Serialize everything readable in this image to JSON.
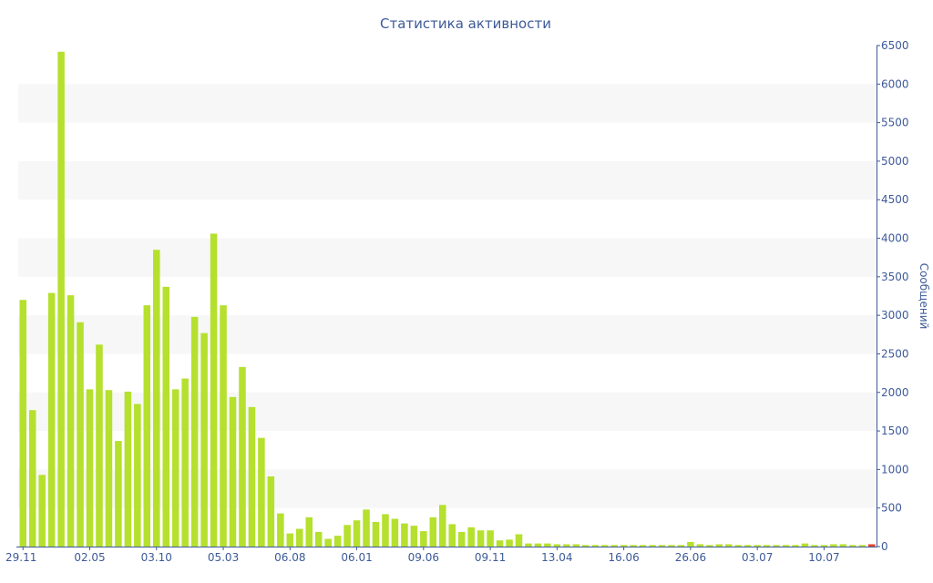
{
  "chart_data": {
    "type": "bar",
    "title": "Статистика активности",
    "ylabel": "Сообщений",
    "xlabel": "",
    "ylim": [
      0,
      6500
    ],
    "yticks": [
      0,
      500,
      1000,
      1500,
      2000,
      2500,
      3000,
      3500,
      4000,
      4500,
      5000,
      5500,
      6000,
      6500
    ],
    "y_axis_side": "right",
    "grid": "alternating horizontal bands",
    "bar_color": "#b5e02e",
    "last_bar_color": "#e8442e",
    "band_color": "#f7f7f7",
    "text_color": "#3d5a99",
    "x_tick_labels": [
      {
        "index": 0,
        "label": "29.11"
      },
      {
        "index": 7,
        "label": "02.05"
      },
      {
        "index": 14,
        "label": "03.10"
      },
      {
        "index": 21,
        "label": "05.03"
      },
      {
        "index": 28,
        "label": "06.08"
      },
      {
        "index": 35,
        "label": "06.01"
      },
      {
        "index": 42,
        "label": "09.06"
      },
      {
        "index": 49,
        "label": "09.11"
      },
      {
        "index": 56,
        "label": "13.04"
      },
      {
        "index": 63,
        "label": "16.06"
      },
      {
        "index": 70,
        "label": "26.06"
      },
      {
        "index": 77,
        "label": "03.07"
      },
      {
        "index": 84,
        "label": "10.07"
      }
    ],
    "values": [
      3200,
      1770,
      930,
      3290,
      6420,
      3260,
      2910,
      2040,
      2620,
      2030,
      1370,
      2010,
      1850,
      3130,
      3850,
      3370,
      2040,
      2180,
      2980,
      2770,
      4060,
      3130,
      1940,
      2330,
      1810,
      1410,
      910,
      430,
      170,
      230,
      380,
      190,
      100,
      140,
      280,
      340,
      480,
      320,
      420,
      360,
      300,
      270,
      200,
      380,
      540,
      290,
      190,
      250,
      210,
      210,
      80,
      90,
      160,
      40,
      40,
      40,
      30,
      30,
      30,
      20,
      20,
      20,
      20,
      20,
      20,
      20,
      20,
      20,
      20,
      20,
      60,
      30,
      20,
      30,
      30,
      20,
      20,
      20,
      20,
      20,
      20,
      20,
      40,
      20,
      20,
      30,
      30,
      20,
      20,
      30
    ]
  }
}
